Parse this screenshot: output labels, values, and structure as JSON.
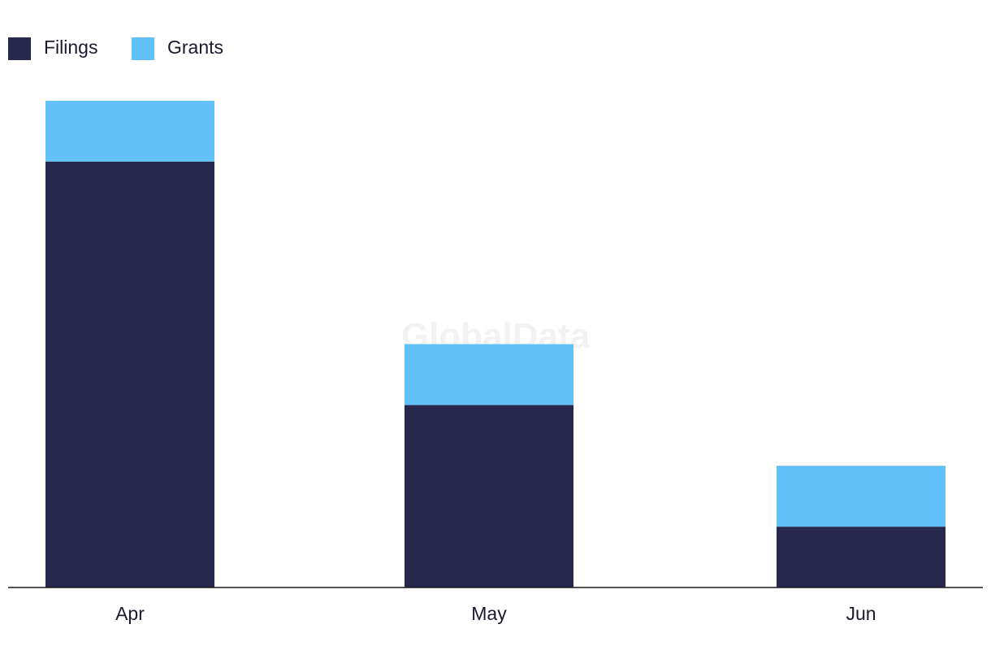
{
  "chart_data": {
    "type": "bar",
    "stacked": true,
    "categories": [
      "Apr",
      "May",
      "Jun"
    ],
    "series": [
      {
        "name": "Filings",
        "color": "#27284c",
        "values": [
          7,
          3,
          1
        ]
      },
      {
        "name": "Grants",
        "color": "#62c1f8",
        "values": [
          1,
          1,
          1
        ]
      }
    ],
    "ylim": [
      0,
      8
    ],
    "grid": false,
    "legend": "top-left",
    "xlabel": "",
    "ylabel": ""
  },
  "watermark": "GlobalData",
  "colors": {
    "axis": "#1a1a1a",
    "text": "#1a1a2e"
  }
}
